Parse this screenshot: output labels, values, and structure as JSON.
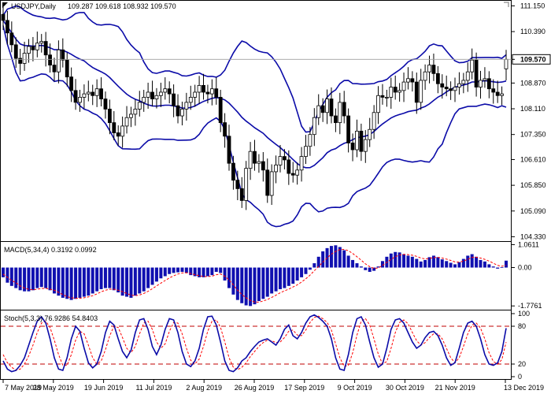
{
  "colors": {
    "background": "#ffffff",
    "frame": "#000000",
    "grid": "#c8c8c8",
    "bollinger": "#0b0ba8",
    "macd_hist": "#1010b0",
    "signal": "#ff0000",
    "stoch_main": "#0b0ba8",
    "stoch_signal": "#ff0000",
    "level_line": "#c00000",
    "candle": "#000000",
    "current_price_line": "#a0a0a0"
  },
  "chart_data": [
    {
      "type": "candlestick",
      "panel": "price",
      "title": "USDJPY,Daily",
      "ohlc_text": "109.287 109.618 108.932 109.570",
      "current_price": "109.570",
      "y_ticks": [
        "111.150",
        "110.390",
        "109.570",
        "108.870",
        "108.110",
        "107.350",
        "106.610",
        "105.850",
        "105.090",
        "104.330"
      ],
      "ylim": [
        104.2,
        111.3
      ],
      "x_ticks": [
        "7 May 2019",
        "28 May 2019",
        "19 Jun 2019",
        "11 Jul 2019",
        "2 Aug 2019",
        "26 Aug 2019",
        "17 Sep 2019",
        "9 Oct 2019",
        "30 Oct 2019",
        "21 Nov 2019",
        "13 Dec 2019"
      ],
      "close": [
        110.72,
        110.35,
        110.0,
        109.6,
        109.45,
        109.75,
        109.95,
        109.85,
        110.05,
        110.1,
        109.7,
        109.4,
        109.2,
        109.85,
        109.55,
        109.05,
        108.65,
        108.3,
        108.45,
        108.55,
        108.6,
        108.5,
        108.7,
        108.4,
        108.1,
        107.7,
        107.4,
        107.3,
        107.6,
        107.85,
        107.95,
        108.1,
        108.3,
        108.45,
        108.6,
        108.4,
        108.5,
        108.6,
        108.7,
        108.55,
        108.2,
        107.9,
        108.1,
        108.3,
        108.45,
        108.6,
        108.8,
        108.6,
        108.55,
        108.7,
        108.45,
        107.7,
        107.3,
        106.5,
        106.0,
        105.75,
        105.4,
        106.35,
        106.85,
        106.5,
        106.55,
        106.3,
        105.55,
        106.25,
        106.45,
        106.7,
        106.6,
        106.2,
        106.15,
        106.3,
        106.7,
        107.0,
        107.35,
        107.85,
        108.2,
        108.0,
        108.4,
        107.9,
        107.7,
        108.3,
        107.9,
        107.1,
        106.9,
        107.45,
        106.85,
        107.2,
        107.5,
        108.0,
        108.5,
        108.45,
        108.45,
        108.75,
        108.6,
        108.65,
        108.9,
        109.0,
        108.9,
        108.3,
        108.95,
        109.2,
        109.4,
        109.15,
        108.85,
        108.75,
        108.7,
        108.65,
        108.75,
        108.85,
        108.95,
        109.2,
        109.55,
        108.75,
        108.95,
        109.0,
        108.7,
        108.6,
        108.5,
        108.55,
        109.57
      ],
      "open": [
        110.9,
        110.72,
        110.35,
        110.0,
        109.6,
        109.45,
        109.75,
        109.95,
        109.85,
        110.05,
        110.1,
        109.7,
        109.4,
        109.2,
        109.85,
        109.55,
        109.05,
        108.65,
        108.3,
        108.45,
        108.55,
        108.6,
        108.5,
        108.7,
        108.4,
        108.1,
        107.7,
        107.4,
        107.3,
        107.6,
        107.85,
        107.95,
        108.1,
        108.3,
        108.45,
        108.6,
        108.4,
        108.5,
        108.6,
        108.7,
        108.55,
        108.2,
        107.9,
        108.1,
        108.3,
        108.45,
        108.6,
        108.8,
        108.6,
        108.55,
        108.7,
        108.45,
        107.7,
        107.3,
        106.5,
        106.0,
        105.75,
        105.4,
        106.35,
        106.85,
        106.5,
        106.55,
        106.3,
        105.55,
        106.25,
        106.45,
        106.7,
        106.6,
        106.2,
        106.15,
        106.3,
        106.7,
        107.0,
        107.35,
        107.85,
        108.2,
        108.0,
        108.4,
        107.9,
        107.7,
        108.3,
        107.9,
        107.1,
        106.9,
        107.45,
        106.85,
        107.2,
        107.5,
        108.0,
        108.5,
        108.45,
        108.45,
        108.75,
        108.6,
        108.65,
        108.9,
        109.0,
        108.9,
        108.3,
        108.95,
        109.2,
        109.4,
        109.15,
        108.85,
        108.75,
        108.7,
        108.65,
        108.75,
        108.85,
        108.95,
        109.2,
        109.55,
        108.75,
        108.95,
        109.0,
        108.7,
        108.6,
        108.5,
        109.29
      ]
    },
    {
      "type": "bar",
      "panel": "macd",
      "title": "MACD(5,34,4) 0.3192 0.0992",
      "y_ticks": [
        "1.0611",
        "0.00",
        "-1.7761"
      ],
      "ylim": [
        -1.95,
        1.15
      ],
      "values": [
        -0.45,
        -0.7,
        -0.85,
        -0.95,
        -1.05,
        -1.1,
        -1.1,
        -1.05,
        -0.95,
        -0.9,
        -0.95,
        -1.05,
        -1.2,
        -1.3,
        -1.4,
        -1.45,
        -1.5,
        -1.45,
        -1.4,
        -1.35,
        -1.3,
        -1.2,
        -1.1,
        -1.0,
        -0.95,
        -0.95,
        -1.05,
        -1.15,
        -1.3,
        -1.35,
        -1.4,
        -1.3,
        -1.2,
        -1.1,
        -0.95,
        -0.8,
        -0.65,
        -0.5,
        -0.4,
        -0.3,
        -0.25,
        -0.22,
        -0.2,
        -0.25,
        -0.35,
        -0.4,
        -0.45,
        -0.45,
        -0.4,
        -0.35,
        -0.2,
        -0.25,
        -0.6,
        -0.95,
        -1.25,
        -1.5,
        -1.65,
        -1.75,
        -1.78,
        -1.7,
        -1.55,
        -1.45,
        -1.35,
        -1.2,
        -1.1,
        -1.0,
        -0.95,
        -0.85,
        -0.75,
        -0.6,
        -0.45,
        -0.3,
        -0.1,
        0.2,
        0.5,
        0.75,
        0.9,
        1.0,
        1.03,
        0.95,
        0.8,
        0.55,
        0.35,
        0.2,
        0.05,
        -0.12,
        -0.2,
        -0.15,
        0.05,
        0.3,
        0.5,
        0.65,
        0.72,
        0.7,
        0.62,
        0.55,
        0.5,
        0.4,
        0.28,
        0.35,
        0.48,
        0.55,
        0.48,
        0.38,
        0.3,
        0.22,
        0.15,
        0.25,
        0.4,
        0.55,
        0.62,
        0.5,
        0.35,
        0.28,
        0.15,
        0.05,
        -0.05,
        0.02,
        0.3192
      ],
      "signal": [
        -0.3,
        -0.45,
        -0.6,
        -0.7,
        -0.85,
        -0.95,
        -1.0,
        -1.03,
        -1.0,
        -0.97,
        -0.96,
        -1.0,
        -1.05,
        -1.15,
        -1.25,
        -1.35,
        -1.4,
        -1.42,
        -1.42,
        -1.4,
        -1.36,
        -1.3,
        -1.22,
        -1.12,
        -1.05,
        -1.0,
        -1.0,
        -1.05,
        -1.12,
        -1.2,
        -1.28,
        -1.3,
        -1.27,
        -1.2,
        -1.1,
        -0.98,
        -0.85,
        -0.72,
        -0.6,
        -0.48,
        -0.38,
        -0.3,
        -0.25,
        -0.24,
        -0.28,
        -0.33,
        -0.38,
        -0.41,
        -0.42,
        -0.4,
        -0.33,
        -0.3,
        -0.4,
        -0.58,
        -0.8,
        -1.05,
        -1.25,
        -1.4,
        -1.52,
        -1.6,
        -1.6,
        -1.55,
        -1.48,
        -1.38,
        -1.28,
        -1.17,
        -1.08,
        -1.0,
        -0.9,
        -0.8,
        -0.67,
        -0.52,
        -0.35,
        -0.15,
        0.05,
        0.25,
        0.45,
        0.62,
        0.75,
        0.83,
        0.84,
        0.78,
        0.65,
        0.5,
        0.34,
        0.17,
        0.04,
        -0.04,
        -0.02,
        0.1,
        0.24,
        0.38,
        0.5,
        0.58,
        0.61,
        0.6,
        0.57,
        0.52,
        0.44,
        0.4,
        0.42,
        0.46,
        0.47,
        0.44,
        0.39,
        0.33,
        0.26,
        0.25,
        0.3,
        0.38,
        0.47,
        0.48,
        0.44,
        0.38,
        0.3,
        0.2,
        0.1,
        0.06,
        0.0992
      ]
    },
    {
      "type": "line",
      "panel": "stochastic",
      "title": "Stoch(5,3,3) 76.9286 54.8403",
      "y_ticks": [
        "100",
        "80",
        "20",
        "0"
      ],
      "ylim": [
        0,
        100
      ],
      "levels": [
        80,
        20
      ],
      "main": [
        25,
        12,
        8,
        10,
        18,
        30,
        50,
        70,
        88,
        95,
        85,
        60,
        30,
        12,
        10,
        30,
        60,
        80,
        72,
        45,
        22,
        14,
        20,
        40,
        70,
        88,
        82,
        60,
        40,
        30,
        42,
        70,
        90,
        92,
        75,
        48,
        35,
        50,
        75,
        92,
        90,
        70,
        40,
        20,
        16,
        25,
        45,
        75,
        95,
        96,
        82,
        55,
        25,
        10,
        8,
        14,
        25,
        30,
        40,
        48,
        55,
        58,
        60,
        55,
        50,
        60,
        75,
        82,
        65,
        60,
        70,
        85,
        95,
        98,
        94,
        88,
        80,
        60,
        30,
        12,
        10,
        35,
        70,
        92,
        95,
        82,
        55,
        30,
        15,
        20,
        45,
        75,
        90,
        92,
        85,
        70,
        55,
        45,
        50,
        62,
        70,
        72,
        65,
        50,
        30,
        18,
        22,
        45,
        70,
        85,
        88,
        80,
        60,
        35,
        20,
        18,
        22,
        40,
        76.93
      ],
      "signal": [
        35,
        22,
        15,
        10,
        12,
        20,
        33,
        50,
        70,
        85,
        88,
        78,
        58,
        35,
        18,
        18,
        35,
        58,
        72,
        68,
        50,
        30,
        20,
        25,
        43,
        65,
        80,
        78,
        62,
        45,
        38,
        48,
        68,
        85,
        88,
        75,
        55,
        45,
        52,
        72,
        86,
        85,
        68,
        45,
        26,
        20,
        28,
        48,
        72,
        88,
        90,
        78,
        55,
        30,
        15,
        11,
        15,
        22,
        32,
        40,
        48,
        54,
        58,
        57,
        54,
        55,
        62,
        72,
        74,
        66,
        65,
        74,
        86,
        94,
        96,
        92,
        86,
        74,
        52,
        30,
        16,
        18,
        38,
        66,
        88,
        92,
        82,
        60,
        36,
        20,
        24,
        45,
        70,
        86,
        90,
        84,
        70,
        57,
        50,
        54,
        62,
        68,
        68,
        60,
        45,
        30,
        22,
        30,
        48,
        68,
        82,
        85,
        77,
        60,
        38,
        24,
        20,
        27,
        54.84
      ]
    }
  ]
}
